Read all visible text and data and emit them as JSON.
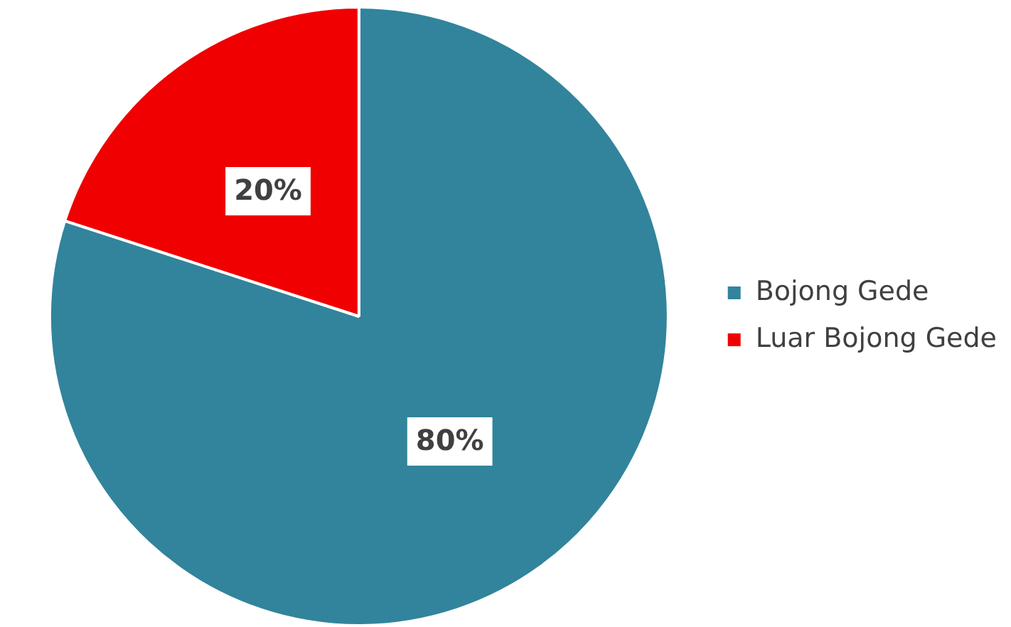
{
  "chart_data": {
    "type": "pie",
    "categories": [
      "Bojong Gede",
      "Luar Bojong Gede"
    ],
    "values": [
      80,
      20
    ],
    "colors": [
      "#31849b",
      "#f00000"
    ],
    "value_labels": [
      "80%",
      "20%"
    ],
    "legend": "right"
  }
}
